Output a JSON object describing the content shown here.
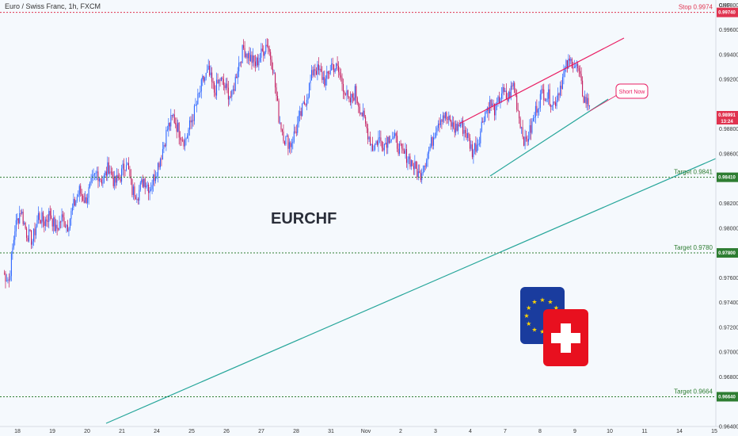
{
  "header": {
    "symbol_title": "Euro / Swiss Franc, 1h, FXCM"
  },
  "main_label": "EURCHF",
  "axis": {
    "currency": "CHF"
  },
  "chart_data": {
    "type": "candlestick",
    "title": "Euro / Swiss Franc, 1h, FXCM",
    "symbol": "EURCHF",
    "ylim": [
      0.964,
      0.9984
    ],
    "y_ticks": [
      "0.99800",
      "0.99600",
      "0.99400",
      "0.99200",
      "0.98800",
      "0.98600",
      "0.98200",
      "0.98000",
      "0.97600",
      "0.97400",
      "0.97200",
      "0.97000",
      "0.96800",
      "0.96400"
    ],
    "x_ticks": [
      "18",
      "19",
      "20",
      "21",
      "24",
      "25",
      "26",
      "27",
      "28",
      "31",
      "Nov",
      "2",
      "3",
      "4",
      "7",
      "8",
      "9",
      "10",
      "11",
      "14",
      "15"
    ],
    "close_sequence": [
      0.9764,
      0.9758,
      0.98,
      0.9815,
      0.9796,
      0.979,
      0.981,
      0.9805,
      0.9812,
      0.9798,
      0.9808,
      0.9802,
      0.9818,
      0.983,
      0.9822,
      0.9835,
      0.9845,
      0.9838,
      0.985,
      0.9836,
      0.9842,
      0.9855,
      0.983,
      0.9828,
      0.984,
      0.9832,
      0.9845,
      0.986,
      0.988,
      0.989,
      0.9878,
      0.987,
      0.9885,
      0.99,
      0.9918,
      0.9926,
      0.991,
      0.992,
      0.9912,
      0.9905,
      0.993,
      0.9945,
      0.9938,
      0.9932,
      0.994,
      0.995,
      0.993,
      0.989,
      0.9872,
      0.9868,
      0.988,
      0.9895,
      0.991,
      0.993,
      0.9925,
      0.9918,
      0.9932,
      0.9928,
      0.9915,
      0.99,
      0.991,
      0.9895,
      0.988,
      0.9865,
      0.9872,
      0.9868,
      0.9875,
      0.987,
      0.986,
      0.9858,
      0.985,
      0.9842,
      0.9855,
      0.9868,
      0.9885,
      0.9892,
      0.9886,
      0.988,
      0.9884,
      0.9876,
      0.9862,
      0.987,
      0.9892,
      0.99,
      0.9895,
      0.991,
      0.9904,
      0.9916,
      0.989,
      0.9868,
      0.988,
      0.9898,
      0.991,
      0.9906,
      0.99,
      0.9915,
      0.993,
      0.9935,
      0.9928,
      0.9905,
      0.9899
    ],
    "current_price": "0.98991",
    "countdown": "13:24",
    "levels": [
      {
        "name": "Stop",
        "label": "Stop 0.9974",
        "price": 0.9974,
        "badge": "0.99740",
        "color": "#e0334f"
      },
      {
        "name": "Target",
        "label": "Target 0.9841",
        "price": 0.9841,
        "badge": "0.98410",
        "color": "#2e7d32"
      },
      {
        "name": "Target",
        "label": "Target 0.9780",
        "price": 0.978,
        "badge": "0.97800",
        "color": "#2e7d32"
      },
      {
        "name": "Target",
        "label": "Target 0.9664",
        "price": 0.9664,
        "badge": "0.96640",
        "color": "#2e7d32"
      }
    ],
    "annotation": "Short Now",
    "colors": {
      "up": "#2962ff",
      "down": "#c2185b",
      "resistance": "#e91e63",
      "support": "#26a69a",
      "stop": "#e0334f",
      "target": "#2e7d32",
      "price_badge": "#e0334f"
    },
    "grid": false
  },
  "icons": {
    "eu_flag": "eu-flag-icon",
    "swiss_flag": "swiss-flag-icon"
  }
}
